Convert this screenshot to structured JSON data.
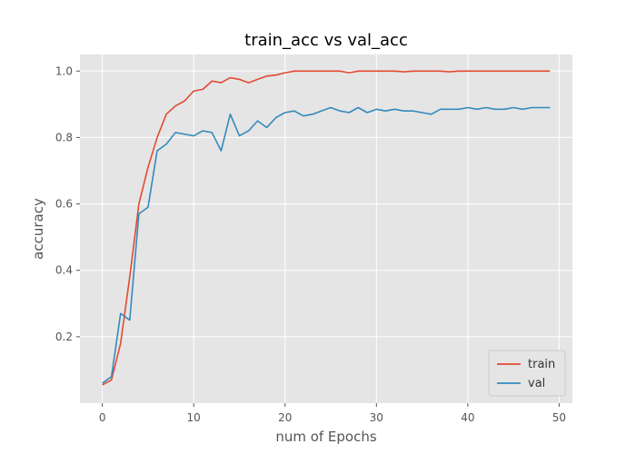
{
  "chart_data": {
    "type": "line",
    "title": "train_acc vs val_acc",
    "xlabel": "num of Epochs",
    "ylabel": "accuracy",
    "xlim": [
      -2.45,
      51.45
    ],
    "ylim": [
      0.0,
      1.05
    ],
    "xticks": [
      0,
      10,
      20,
      30,
      40,
      50
    ],
    "yticks": [
      0.2,
      0.4,
      0.6,
      0.8,
      1.0
    ],
    "xtick_labels": [
      "0",
      "10",
      "20",
      "30",
      "40",
      "50"
    ],
    "ytick_labels": [
      "0.2",
      "0.4",
      "0.6",
      "0.8",
      "1.0"
    ],
    "grid": true,
    "legend_position": "bottom-right",
    "x": [
      0,
      1,
      2,
      3,
      4,
      5,
      6,
      7,
      8,
      9,
      10,
      11,
      12,
      13,
      14,
      15,
      16,
      17,
      18,
      19,
      20,
      21,
      22,
      23,
      24,
      25,
      26,
      27,
      28,
      29,
      30,
      31,
      32,
      33,
      34,
      35,
      36,
      37,
      38,
      39,
      40,
      41,
      42,
      43,
      44,
      45,
      46,
      47,
      48,
      49
    ],
    "series": [
      {
        "name": "train",
        "color": "#E24A33",
        "values": [
          0.055,
          0.07,
          0.18,
          0.38,
          0.6,
          0.71,
          0.8,
          0.87,
          0.895,
          0.91,
          0.94,
          0.945,
          0.97,
          0.965,
          0.98,
          0.975,
          0.965,
          0.975,
          0.985,
          0.988,
          0.995,
          1.0,
          1.0,
          1.0,
          1.0,
          1.0,
          1.0,
          0.995,
          1.0,
          1.0,
          1.0,
          1.0,
          1.0,
          0.998,
          1.0,
          1.0,
          1.0,
          1.0,
          0.998,
          1.0,
          1.0,
          1.0,
          1.0,
          1.0,
          1.0,
          1.0,
          1.0,
          1.0,
          1.0,
          1.0
        ]
      },
      {
        "name": "val",
        "color": "#348ABD",
        "values": [
          0.06,
          0.08,
          0.27,
          0.25,
          0.57,
          0.59,
          0.76,
          0.78,
          0.815,
          0.81,
          0.805,
          0.82,
          0.815,
          0.76,
          0.87,
          0.805,
          0.82,
          0.85,
          0.83,
          0.86,
          0.875,
          0.88,
          0.865,
          0.87,
          0.88,
          0.89,
          0.88,
          0.875,
          0.89,
          0.875,
          0.885,
          0.88,
          0.885,
          0.88,
          0.88,
          0.875,
          0.87,
          0.885,
          0.885,
          0.885,
          0.89,
          0.885,
          0.89,
          0.885,
          0.885,
          0.89,
          0.885,
          0.89,
          0.89,
          0.89
        ]
      }
    ]
  }
}
